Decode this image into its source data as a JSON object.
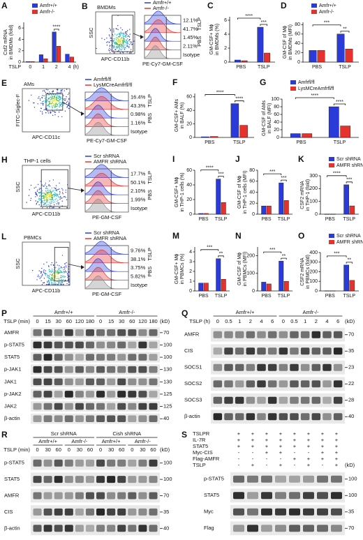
{
  "chart_data": [
    {
      "panel": "A",
      "type": "bar",
      "y_label": [
        "Csf2 mRNA",
        "in BMDMs (fold)"
      ],
      "x_label": "TSLP",
      "x_unit": "(h)",
      "categories": [
        0,
        1,
        2,
        4
      ],
      "series": [
        {
          "name": "Amfr+/+",
          "color": "#2a3bd9",
          "values": [
            0.1,
            1.3,
            5.3,
            1.4
          ]
        },
        {
          "name": "Amfr-/-",
          "color": "#e5322d",
          "values": [
            0.1,
            0.6,
            2.8,
            0.9
          ]
        }
      ],
      "ylim": [
        0,
        7
      ],
      "yticks": [
        0,
        2,
        4,
        6
      ],
      "significance": [
        "****"
      ]
    },
    {
      "panel": "C",
      "type": "bar",
      "y_label": [
        "GM-CSF+ Mϕ",
        "in BMDMs (%)"
      ],
      "categories": [
        "PBS",
        "TSLP"
      ],
      "series": [
        {
          "color": "#2a3bd9",
          "values": [
            0.3,
            5.0
          ]
        },
        {
          "color": "#e5322d",
          "values": [
            0.2,
            1.3
          ]
        }
      ],
      "ylim": [
        0,
        6.5
      ],
      "yticks": [
        0,
        2,
        4,
        6
      ],
      "significance": [
        "****",
        "***"
      ]
    },
    {
      "panel": "D",
      "type": "bar",
      "y_label": [
        "GM-CSF of Mϕ",
        "in BMDMs (MFI)"
      ],
      "categories": [
        "PBS",
        "TSLP"
      ],
      "series": [
        {
          "name": "Amfr+/+",
          "color": "#2a3bd9",
          "values": [
            25,
            60
          ]
        },
        {
          "name": "Amfr-/-",
          "color": "#e5322d",
          "values": [
            25,
            28
          ]
        }
      ],
      "ylim": [
        0,
        85
      ],
      "yticks": [
        0,
        20,
        40,
        60,
        80
      ],
      "significance": [
        "***",
        "**"
      ]
    },
    {
      "panel": "F",
      "type": "bar",
      "y_label": [
        "GM-CSF+ AMs",
        "in BALF (%)"
      ],
      "categories": [
        "PBS",
        "TSLP"
      ],
      "series": [
        {
          "color": "#2a3bd9",
          "values": [
            1,
            50
          ]
        },
        {
          "color": "#e5322d",
          "values": [
            1.5,
            18
          ]
        }
      ],
      "ylim": [
        0,
        65
      ],
      "yticks": [
        0,
        20,
        40,
        60
      ],
      "significance": [
        "****",
        "****"
      ]
    },
    {
      "panel": "G",
      "type": "bar",
      "y_label": [
        "GM-CSF of AMs",
        "in BALF (MFI)"
      ],
      "categories": [
        "PBS",
        "TSLP"
      ],
      "series": [
        {
          "name": "Amfrfl/fl",
          "color": "#2a3bd9",
          "values": [
            10,
            80
          ]
        },
        {
          "name": "LysMCreAmfrfl/fl",
          "color": "#e5322d",
          "values": [
            10,
            30
          ]
        }
      ],
      "ylim": [
        0,
        100
      ],
      "yticks": [
        0,
        20,
        40,
        60,
        80,
        100
      ],
      "significance": [
        "****",
        "****"
      ]
    },
    {
      "panel": "I",
      "type": "bar",
      "y_label": [
        "GM-CSF+ Mϕ",
        "in THP-1 cells (%)"
      ],
      "categories": [
        "PBS",
        "TSLP"
      ],
      "series": [
        {
          "color": "#2a3bd9",
          "values": [
            1,
            48
          ]
        },
        {
          "color": "#e5322d",
          "values": [
            1,
            16
          ]
        }
      ],
      "ylim": [
        0,
        60
      ],
      "yticks": [
        0,
        20,
        40,
        60
      ],
      "significance": [
        "****",
        "***"
      ]
    },
    {
      "panel": "J",
      "type": "bar",
      "y_label": [
        "GM-CSF of Mϕ",
        "in THP-1 cells (MFI)"
      ],
      "categories": [
        "PBS",
        "TSLP"
      ],
      "series": [
        {
          "color": "#2a3bd9",
          "values": [
            15,
            57
          ]
        },
        {
          "color": "#e5322d",
          "values": [
            15,
            25
          ]
        }
      ],
      "ylim": [
        0,
        80
      ],
      "yticks": [
        0,
        20,
        40,
        60,
        80
      ],
      "significance": [
        "***",
        "***"
      ]
    },
    {
      "panel": "K",
      "type": "bar",
      "y_label": [
        "CSF2 mRNA",
        "in THP-1 (fold)"
      ],
      "categories": [
        "PBS",
        "TSLP"
      ],
      "series": [
        {
          "name": "Scr shRNA",
          "color": "#2a3bd9",
          "values": [
            1,
            230
          ]
        },
        {
          "name": "AMFR shRNA",
          "color": "#e5322d",
          "values": [
            1,
            65
          ]
        }
      ],
      "ylim": [
        0,
        300
      ],
      "yticks": [
        0,
        100,
        200,
        300
      ],
      "significance": [
        "****",
        "***"
      ]
    },
    {
      "panel": "M",
      "type": "bar",
      "y_label": [
        "GM-CSF+ Mϕ",
        "in PBMCs (%)"
      ],
      "categories": [
        "PBS",
        "TSLP"
      ],
      "series": [
        {
          "color": "#2a3bd9",
          "values": [
            0.8,
            3.3
          ]
        },
        {
          "color": "#e5322d",
          "values": [
            0.8,
            1.2
          ]
        }
      ],
      "ylim": [
        0,
        4.5
      ],
      "yticks": [
        0,
        1,
        2,
        3,
        4
      ],
      "significance": [
        "***",
        "**"
      ]
    },
    {
      "panel": "N",
      "type": "bar",
      "y_label": [
        "GM-CSF of Mϕ",
        "in PBMCs (MFI)"
      ],
      "categories": [
        "PBS",
        "TSLP"
      ],
      "series": [
        {
          "color": "#2a3bd9",
          "values": [
            50,
            170
          ]
        },
        {
          "color": "#e5322d",
          "values": [
            40,
            55
          ]
        }
      ],
      "ylim": [
        0,
        250
      ],
      "yticks": [
        0,
        100,
        200
      ],
      "significance": [
        "***",
        "**"
      ]
    },
    {
      "panel": "O",
      "type": "bar",
      "y_label": [
        "CSF2 mRNA",
        "in PBMCs (fold)"
      ],
      "categories": [
        "PBS",
        "TSLP"
      ],
      "series": [
        {
          "name": "Scr shRNA",
          "color": "#2a3bd9",
          "values": [
            2,
            270
          ]
        },
        {
          "name": "AMFR shRNA",
          "color": "#e5322d",
          "values": [
            2,
            110
          ]
        }
      ],
      "ylim": [
        0,
        400
      ],
      "yticks": [
        0,
        100,
        200,
        300,
        400
      ],
      "significance": [
        "***",
        "**"
      ]
    }
  ],
  "flow_panels": [
    {
      "panel": "B",
      "title": "BMDMs",
      "y_label": "SSC",
      "x_label": "APC-CD11b",
      "hist_label": "PE-Cy7-GM-CSF",
      "legend": [
        {
          "name": "Amfr+/+",
          "color": "#2a3bd9"
        },
        {
          "name": "Amfr-/-",
          "color": "#e5322d"
        }
      ],
      "percentages": [
        "12.1%",
        "41.7%",
        "1.45%",
        "2.11%"
      ],
      "conditions": [
        "PBS",
        "TSLP"
      ],
      "isotype": "Isotype"
    },
    {
      "panel": "E",
      "title": "AMs",
      "y_label": "FITC-Siglec-F",
      "x_label": "APC-CD11c",
      "hist_label": "PE-Cy7-GM-CSF",
      "legend": [
        {
          "name": "Amfrfl/fl",
          "color": "#2a3bd9"
        },
        {
          "name": "LysMCreAmfrfl/fl",
          "color": "#e5322d"
        }
      ],
      "percentages": [
        "16.4%",
        "43.3%",
        "0.98%",
        "1.16%"
      ],
      "conditions": [
        "PBS",
        "TSLP"
      ],
      "isotype": "Isotype"
    },
    {
      "panel": "H",
      "title": "THP-1 cells",
      "y_label": "SSC",
      "x_label": "APC-CD11b",
      "hist_label": "PE-GM-CSF",
      "legend": [
        {
          "name": "Scr shRNA",
          "color": "#2a3bd9"
        },
        {
          "name": "AMFR shRNA",
          "color": "#e5322d"
        }
      ],
      "percentages": [
        "17.7%",
        "50.1%",
        "2.10%",
        "1.99%"
      ],
      "conditions": [
        "PBS",
        "TSLP"
      ],
      "isotype": "Isotype"
    },
    {
      "panel": "L",
      "title": "PBMCs",
      "y_label": "SSC",
      "x_label": "APC-CD11b",
      "hist_label": "PE-GM-CSF",
      "legend": [
        {
          "name": "Scr shRNA",
          "color": "#2a3bd9"
        },
        {
          "name": "AMFR shRNA",
          "color": "#e5322d"
        }
      ],
      "percentages": [
        "9.76%",
        "38.1%",
        "3.75%",
        "5.82%"
      ],
      "conditions": [
        "PBS",
        "TSLP"
      ],
      "isotype": "Isotype"
    }
  ],
  "blots": [
    {
      "panel": "P",
      "lane_label": "TSLP (min)",
      "unit": "(kD)",
      "groups": [
        {
          "label": "Amfr+/+",
          "lanes": [
            0,
            15,
            30,
            60,
            120,
            180
          ]
        },
        {
          "label": "Amfr-/-",
          "lanes": [
            0,
            15,
            30,
            60,
            120,
            180
          ]
        }
      ],
      "rows": [
        {
          "label": "AMFR",
          "kd": 70
        },
        {
          "label": "p-STAT5",
          "kd": 100
        },
        {
          "label": "STAT5",
          "kd": 100
        },
        {
          "label": "p-JAK1",
          "kd": 130
        },
        {
          "label": "JAK1",
          "kd": 130
        },
        {
          "label": "p-JAK2",
          "kd": 125
        },
        {
          "label": "JAK2",
          "kd": 125
        },
        {
          "label": "β-actin",
          "kd": 40
        }
      ]
    },
    {
      "panel": "Q",
      "lane_label": "TSLP (h)",
      "unit": "(kD)",
      "groups": [
        {
          "label": "Amfr+/+",
          "lanes": [
            0,
            0.5,
            1,
            2,
            4,
            6
          ]
        },
        {
          "label": "Amfr-/-",
          "lanes": [
            0,
            0.5,
            1,
            2,
            4,
            6
          ]
        }
      ],
      "rows": [
        {
          "label": "AMFR",
          "kd": 70
        },
        {
          "label": "CIS",
          "kd": 35
        },
        {
          "label": "SOCS1",
          "kd": 23
        },
        {
          "label": "SOCS2",
          "kd": 22
        },
        {
          "label": "SOCS3",
          "kd": 28
        },
        {
          "label": "β-actin",
          "kd": 40
        }
      ]
    },
    {
      "panel": "R",
      "lane_label": "TSLP (min)",
      "unit": "(kD)",
      "groups": [
        {
          "label": "Scr shRNA",
          "subgroups": [
            {
              "label": "Amfr+/+",
              "lanes": [
                0,
                30,
                60
              ]
            },
            {
              "label": "Amfr-/-",
              "lanes": [
                0,
                30,
                60
              ]
            }
          ]
        },
        {
          "label": "Cish shRNA",
          "subgroups": [
            {
              "label": "Amfr+/+",
              "lanes": [
                0,
                30,
                60
              ]
            },
            {
              "label": "Amfr-/-",
              "lanes": [
                0,
                30,
                60
              ]
            }
          ]
        }
      ],
      "rows": [
        {
          "label": "p-STAT5",
          "kd": 100
        },
        {
          "label": "STAT5",
          "kd": 100
        },
        {
          "label": "AMFR",
          "kd": 70
        },
        {
          "label": "CIS",
          "kd": 35
        },
        {
          "label": "β-actin",
          "kd": 40
        }
      ]
    },
    {
      "panel": "S",
      "unit": "(kD)",
      "conditions": [
        {
          "label": "TSLPR",
          "signs": [
            "+",
            "+",
            "+",
            "+",
            "+",
            "+",
            "+",
            "+"
          ]
        },
        {
          "label": "IL-7R",
          "signs": [
            "+",
            "+",
            "+",
            "+",
            "+",
            "+",
            "+",
            "+"
          ]
        },
        {
          "label": "STAT5",
          "signs": [
            "+",
            "+",
            "+",
            "+",
            "+",
            "+",
            "+",
            "+"
          ]
        },
        {
          "label": "Myc-CIS",
          "signs": [
            "-",
            "-",
            "+",
            "+",
            "-",
            "-",
            "+",
            "+"
          ]
        },
        {
          "label": "Flag-AMFR",
          "signs": [
            "-",
            "-",
            "-",
            "-",
            "+",
            "+",
            "+",
            "+"
          ]
        },
        {
          "label": "TSLP",
          "signs": [
            "-",
            "+",
            "-",
            "+",
            "-",
            "+",
            "-",
            "+"
          ]
        }
      ],
      "rows": [
        {
          "label": "p-STAT5",
          "kd": 100
        },
        {
          "label": "STAT5",
          "kd": 100
        },
        {
          "label": "Myc",
          "kd": 35
        },
        {
          "label": "Flag",
          "kd": 70
        }
      ]
    }
  ]
}
